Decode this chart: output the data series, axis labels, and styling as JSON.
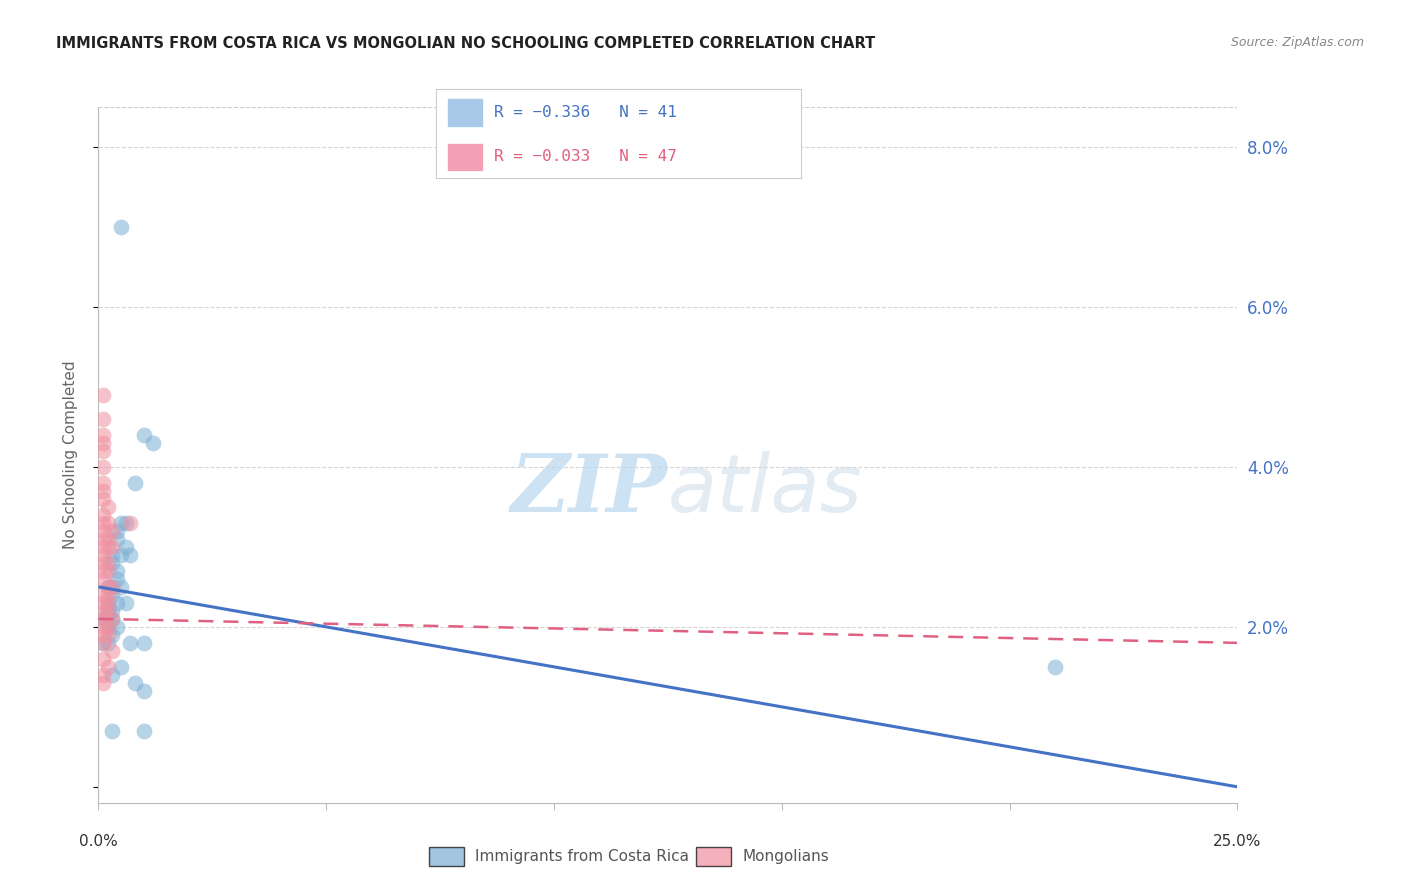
{
  "title": "IMMIGRANTS FROM COSTA RICA VS MONGOLIAN NO SCHOOLING COMPLETED CORRELATION CHART",
  "source": "Source: ZipAtlas.com",
  "ylabel": "No Schooling Completed",
  "xmin": 0.0,
  "xmax": 0.25,
  "ymin": -0.002,
  "ymax": 0.085,
  "yticks": [
    0.0,
    0.02,
    0.04,
    0.06,
    0.08
  ],
  "ytick_labels": [
    "",
    "2.0%",
    "4.0%",
    "6.0%",
    "8.0%"
  ],
  "legend_entries": [
    {
      "label": "R = −0.336   N = 41",
      "color": "#a8c8e8"
    },
    {
      "label": "R = −0.033   N = 47",
      "color": "#f4a0b4"
    }
  ],
  "legend_series": [
    "Immigrants from Costa Rica",
    "Mongolians"
  ],
  "blue_color": "#7bafd4",
  "pink_color": "#f090a0",
  "blue_scatter": [
    [
      0.005,
      0.07
    ],
    [
      0.01,
      0.044
    ],
    [
      0.012,
      0.043
    ],
    [
      0.008,
      0.038
    ],
    [
      0.005,
      0.033
    ],
    [
      0.006,
      0.033
    ],
    [
      0.004,
      0.032
    ],
    [
      0.004,
      0.031
    ],
    [
      0.006,
      0.03
    ],
    [
      0.003,
      0.029
    ],
    [
      0.005,
      0.029
    ],
    [
      0.007,
      0.029
    ],
    [
      0.003,
      0.028
    ],
    [
      0.004,
      0.027
    ],
    [
      0.004,
      0.026
    ],
    [
      0.002,
      0.025
    ],
    [
      0.003,
      0.025
    ],
    [
      0.005,
      0.025
    ],
    [
      0.003,
      0.024
    ],
    [
      0.002,
      0.023
    ],
    [
      0.004,
      0.023
    ],
    [
      0.006,
      0.023
    ],
    [
      0.002,
      0.022
    ],
    [
      0.003,
      0.022
    ],
    [
      0.002,
      0.021
    ],
    [
      0.003,
      0.021
    ],
    [
      0.001,
      0.021
    ],
    [
      0.002,
      0.02
    ],
    [
      0.004,
      0.02
    ],
    [
      0.003,
      0.019
    ],
    [
      0.001,
      0.018
    ],
    [
      0.002,
      0.018
    ],
    [
      0.007,
      0.018
    ],
    [
      0.01,
      0.018
    ],
    [
      0.005,
      0.015
    ],
    [
      0.003,
      0.014
    ],
    [
      0.008,
      0.013
    ],
    [
      0.01,
      0.012
    ],
    [
      0.003,
      0.007
    ],
    [
      0.01,
      0.007
    ],
    [
      0.21,
      0.015
    ]
  ],
  "pink_scatter": [
    [
      0.001,
      0.049
    ],
    [
      0.001,
      0.046
    ],
    [
      0.001,
      0.044
    ],
    [
      0.001,
      0.043
    ],
    [
      0.001,
      0.042
    ],
    [
      0.001,
      0.04
    ],
    [
      0.001,
      0.038
    ],
    [
      0.001,
      0.037
    ],
    [
      0.001,
      0.036
    ],
    [
      0.002,
      0.035
    ],
    [
      0.001,
      0.034
    ],
    [
      0.002,
      0.033
    ],
    [
      0.001,
      0.033
    ],
    [
      0.001,
      0.032
    ],
    [
      0.003,
      0.032
    ],
    [
      0.001,
      0.031
    ],
    [
      0.002,
      0.031
    ],
    [
      0.002,
      0.03
    ],
    [
      0.001,
      0.03
    ],
    [
      0.003,
      0.03
    ],
    [
      0.001,
      0.029
    ],
    [
      0.002,
      0.028
    ],
    [
      0.001,
      0.028
    ],
    [
      0.002,
      0.027
    ],
    [
      0.001,
      0.027
    ],
    [
      0.001,
      0.026
    ],
    [
      0.002,
      0.025
    ],
    [
      0.003,
      0.025
    ],
    [
      0.001,
      0.024
    ],
    [
      0.002,
      0.024
    ],
    [
      0.001,
      0.023
    ],
    [
      0.002,
      0.023
    ],
    [
      0.001,
      0.022
    ],
    [
      0.002,
      0.022
    ],
    [
      0.001,
      0.021
    ],
    [
      0.003,
      0.021
    ],
    [
      0.002,
      0.02
    ],
    [
      0.001,
      0.02
    ],
    [
      0.001,
      0.019
    ],
    [
      0.002,
      0.019
    ],
    [
      0.001,
      0.018
    ],
    [
      0.003,
      0.017
    ],
    [
      0.001,
      0.016
    ],
    [
      0.002,
      0.015
    ],
    [
      0.001,
      0.014
    ],
    [
      0.001,
      0.013
    ],
    [
      0.007,
      0.033
    ]
  ],
  "blue_trend_x": [
    0.0,
    0.25
  ],
  "blue_trend_y": [
    0.025,
    0.0
  ],
  "pink_trend_x": [
    0.0,
    0.25
  ],
  "pink_trend_y": [
    0.021,
    0.018
  ],
  "watermark_zip": "ZIP",
  "watermark_atlas": "atlas",
  "background_color": "#ffffff",
  "grid_color": "#cccccc",
  "tick_color": "#4472c4",
  "axis_color": "#bbbbbb"
}
